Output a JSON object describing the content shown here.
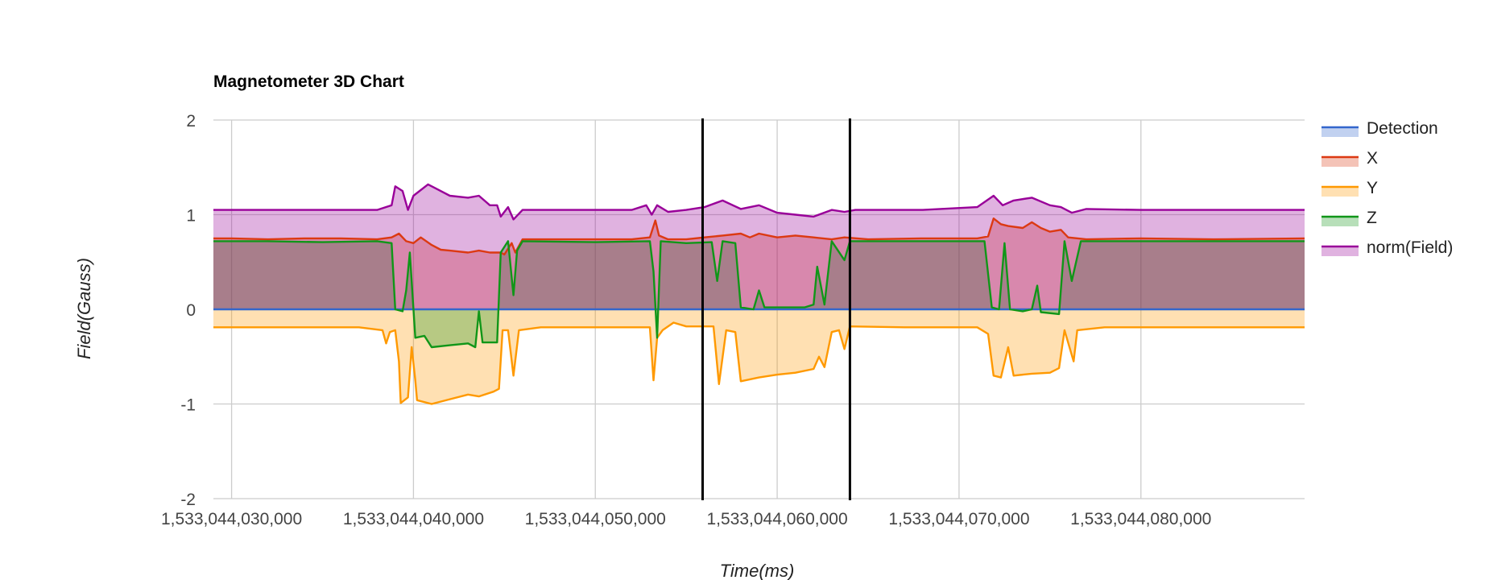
{
  "chart_data": {
    "type": "area",
    "title": "Magnetometer 3D Chart",
    "xlabel": "Time(ms)",
    "ylabel": "Field(Gauss)",
    "xlim": [
      1533044029000,
      1533044089000
    ],
    "ylim": [
      -2,
      2
    ],
    "grid": true,
    "legend_position": "right",
    "x_ticks": [
      1533044030000,
      1533044040000,
      1533044050000,
      1533044060000,
      1533044070000,
      1533044080000
    ],
    "x_tick_labels": [
      "1,533,044,030,000",
      "1,533,044,040,000",
      "1,533,044,050,000",
      "1,533,044,060,000",
      "1,533,044,070,000",
      "1,533,044,080,000"
    ],
    "y_ticks": [
      2,
      1,
      0,
      -1,
      -2
    ],
    "y_tick_labels": [
      "2",
      "1",
      "0",
      "-1",
      "-2"
    ],
    "vertical_markers": [
      1533044055900,
      1533044064000
    ],
    "series": [
      {
        "name": "Detection",
        "color": "#3366cc",
        "fill_opacity": 0.3,
        "points": [
          [
            1533044029000,
            0
          ],
          [
            1533044089000,
            0
          ]
        ]
      },
      {
        "name": "X",
        "color": "#dc3912",
        "fill_opacity": 0.3,
        "points": [
          [
            1533044029000,
            0.75
          ],
          [
            1533044030000,
            0.75
          ],
          [
            1533044032000,
            0.74
          ],
          [
            1533044034000,
            0.75
          ],
          [
            1533044036000,
            0.75
          ],
          [
            1533044038000,
            0.74
          ],
          [
            1533044038800,
            0.76
          ],
          [
            1533044039200,
            0.8
          ],
          [
            1533044039600,
            0.72
          ],
          [
            1533044040000,
            0.7
          ],
          [
            1533044040400,
            0.76
          ],
          [
            1533044041000,
            0.68
          ],
          [
            1533044041500,
            0.63
          ],
          [
            1533044042000,
            0.62
          ],
          [
            1533044043000,
            0.6
          ],
          [
            1533044043600,
            0.62
          ],
          [
            1533044044200,
            0.6
          ],
          [
            1533044044800,
            0.6
          ],
          [
            1533044045000,
            0.58
          ],
          [
            1533044045400,
            0.7
          ],
          [
            1533044045600,
            0.6
          ],
          [
            1533044046000,
            0.74
          ],
          [
            1533044048000,
            0.74
          ],
          [
            1533044050000,
            0.74
          ],
          [
            1533044052000,
            0.74
          ],
          [
            1533044053000,
            0.76
          ],
          [
            1533044053300,
            0.94
          ],
          [
            1533044053500,
            0.78
          ],
          [
            1533044054000,
            0.74
          ],
          [
            1533044055000,
            0.74
          ],
          [
            1533044056000,
            0.76
          ],
          [
            1533044057000,
            0.78
          ],
          [
            1533044058000,
            0.8
          ],
          [
            1533044058500,
            0.76
          ],
          [
            1533044059000,
            0.8
          ],
          [
            1533044060000,
            0.76
          ],
          [
            1533044061000,
            0.78
          ],
          [
            1533044062000,
            0.76
          ],
          [
            1533044063000,
            0.74
          ],
          [
            1533044063700,
            0.76
          ],
          [
            1533044065000,
            0.74
          ],
          [
            1533044068000,
            0.75
          ],
          [
            1533044071000,
            0.75
          ],
          [
            1533044071600,
            0.77
          ],
          [
            1533044071900,
            0.96
          ],
          [
            1533044072300,
            0.9
          ],
          [
            1533044072700,
            0.88
          ],
          [
            1533044073500,
            0.86
          ],
          [
            1533044074000,
            0.92
          ],
          [
            1533044074500,
            0.86
          ],
          [
            1533044075000,
            0.82
          ],
          [
            1533044075600,
            0.84
          ],
          [
            1533044076000,
            0.76
          ],
          [
            1533044077000,
            0.74
          ],
          [
            1533044080000,
            0.75
          ],
          [
            1533044084000,
            0.74
          ],
          [
            1533044089000,
            0.75
          ]
        ]
      },
      {
        "name": "Y",
        "color": "#ff9900",
        "fill_opacity": 0.3,
        "points": [
          [
            1533044029000,
            -0.19
          ],
          [
            1533044032000,
            -0.19
          ],
          [
            1533044035000,
            -0.19
          ],
          [
            1533044037000,
            -0.19
          ],
          [
            1533044038300,
            -0.22
          ],
          [
            1533044038500,
            -0.36
          ],
          [
            1533044038700,
            -0.24
          ],
          [
            1533044039000,
            -0.22
          ],
          [
            1533044039200,
            -0.55
          ],
          [
            1533044039300,
            -0.99
          ],
          [
            1533044039700,
            -0.93
          ],
          [
            1533044039900,
            -0.4
          ],
          [
            1533044040100,
            -0.75
          ],
          [
            1533044040200,
            -0.96
          ],
          [
            1533044041000,
            -1.0
          ],
          [
            1533044042000,
            -0.95
          ],
          [
            1533044043000,
            -0.9
          ],
          [
            1533044043600,
            -0.92
          ],
          [
            1533044044400,
            -0.87
          ],
          [
            1533044044700,
            -0.84
          ],
          [
            1533044044900,
            -0.22
          ],
          [
            1533044045200,
            -0.22
          ],
          [
            1533044045500,
            -0.7
          ],
          [
            1533044045800,
            -0.22
          ],
          [
            1533044047000,
            -0.19
          ],
          [
            1533044050000,
            -0.19
          ],
          [
            1533044053000,
            -0.19
          ],
          [
            1533044053200,
            -0.75
          ],
          [
            1533044053400,
            -0.3
          ],
          [
            1533044053700,
            -0.22
          ],
          [
            1533044054300,
            -0.14
          ],
          [
            1533044055000,
            -0.18
          ],
          [
            1533044056500,
            -0.18
          ],
          [
            1533044056800,
            -0.79
          ],
          [
            1533044057200,
            -0.22
          ],
          [
            1533044057700,
            -0.24
          ],
          [
            1533044058000,
            -0.76
          ],
          [
            1533044059000,
            -0.72
          ],
          [
            1533044060000,
            -0.69
          ],
          [
            1533044061000,
            -0.67
          ],
          [
            1533044062000,
            -0.63
          ],
          [
            1533044062300,
            -0.5
          ],
          [
            1533044062600,
            -0.61
          ],
          [
            1533044063000,
            -0.24
          ],
          [
            1533044063400,
            -0.22
          ],
          [
            1533044063700,
            -0.42
          ],
          [
            1533044064000,
            -0.18
          ],
          [
            1533044067000,
            -0.19
          ],
          [
            1533044071000,
            -0.19
          ],
          [
            1533044071600,
            -0.26
          ],
          [
            1533044071900,
            -0.7
          ],
          [
            1533044072300,
            -0.72
          ],
          [
            1533044072700,
            -0.4
          ],
          [
            1533044073000,
            -0.7
          ],
          [
            1533044074000,
            -0.68
          ],
          [
            1533044075000,
            -0.67
          ],
          [
            1533044075500,
            -0.62
          ],
          [
            1533044075800,
            -0.22
          ],
          [
            1533044076300,
            -0.55
          ],
          [
            1533044076500,
            -0.22
          ],
          [
            1533044078000,
            -0.19
          ],
          [
            1533044084000,
            -0.19
          ],
          [
            1533044089000,
            -0.19
          ]
        ]
      },
      {
        "name": "Z",
        "color": "#109618",
        "fill_opacity": 0.3,
        "points": [
          [
            1533044029000,
            0.72
          ],
          [
            1533044032000,
            0.72
          ],
          [
            1533044035000,
            0.71
          ],
          [
            1533044038000,
            0.72
          ],
          [
            1533044038800,
            0.7
          ],
          [
            1533044039000,
            0.0
          ],
          [
            1533044039400,
            -0.02
          ],
          [
            1533044039600,
            0.2
          ],
          [
            1533044039800,
            0.6
          ],
          [
            1533044040100,
            -0.3
          ],
          [
            1533044040600,
            -0.28
          ],
          [
            1533044041000,
            -0.4
          ],
          [
            1533044042000,
            -0.38
          ],
          [
            1533044043000,
            -0.36
          ],
          [
            1533044043400,
            -0.4
          ],
          [
            1533044043600,
            -0.02
          ],
          [
            1533044043800,
            -0.35
          ],
          [
            1533044044600,
            -0.35
          ],
          [
            1533044044800,
            0.6
          ],
          [
            1533044045200,
            0.72
          ],
          [
            1533044045500,
            0.15
          ],
          [
            1533044045700,
            0.62
          ],
          [
            1533044046000,
            0.72
          ],
          [
            1533044050000,
            0.71
          ],
          [
            1533044053000,
            0.72
          ],
          [
            1533044053200,
            0.4
          ],
          [
            1533044053400,
            -0.3
          ],
          [
            1533044053600,
            0.72
          ],
          [
            1533044055000,
            0.7
          ],
          [
            1533044056400,
            0.71
          ],
          [
            1533044056700,
            0.3
          ],
          [
            1533044057000,
            0.72
          ],
          [
            1533044057700,
            0.7
          ],
          [
            1533044058000,
            0.02
          ],
          [
            1533044058700,
            0.0
          ],
          [
            1533044059000,
            0.2
          ],
          [
            1533044059300,
            0.02
          ],
          [
            1533044061500,
            0.02
          ],
          [
            1533044062000,
            0.05
          ],
          [
            1533044062200,
            0.45
          ],
          [
            1533044062600,
            0.05
          ],
          [
            1533044063000,
            0.72
          ],
          [
            1533044063700,
            0.52
          ],
          [
            1533044064000,
            0.72
          ],
          [
            1533044068000,
            0.72
          ],
          [
            1533044071400,
            0.72
          ],
          [
            1533044071800,
            0.02
          ],
          [
            1533044072200,
            0.0
          ],
          [
            1533044072500,
            0.7
          ],
          [
            1533044072800,
            0.0
          ],
          [
            1533044073500,
            -0.02
          ],
          [
            1533044074000,
            0.0
          ],
          [
            1533044074300,
            0.25
          ],
          [
            1533044074500,
            -0.03
          ],
          [
            1533044075500,
            -0.05
          ],
          [
            1533044075800,
            0.72
          ],
          [
            1533044076200,
            0.3
          ],
          [
            1533044076700,
            0.72
          ],
          [
            1533044080000,
            0.72
          ],
          [
            1533044089000,
            0.72
          ]
        ]
      },
      {
        "name": "norm(Field)",
        "color": "#990099",
        "fill_opacity": 0.3,
        "points": [
          [
            1533044029000,
            1.05
          ],
          [
            1533044032000,
            1.05
          ],
          [
            1533044035000,
            1.05
          ],
          [
            1533044038000,
            1.05
          ],
          [
            1533044038800,
            1.1
          ],
          [
            1533044039000,
            1.3
          ],
          [
            1533044039400,
            1.25
          ],
          [
            1533044039700,
            1.05
          ],
          [
            1533044040000,
            1.2
          ],
          [
            1533044040800,
            1.32
          ],
          [
            1533044041200,
            1.28
          ],
          [
            1533044042000,
            1.2
          ],
          [
            1533044043000,
            1.18
          ],
          [
            1533044043600,
            1.2
          ],
          [
            1533044044200,
            1.1
          ],
          [
            1533044044600,
            1.1
          ],
          [
            1533044044800,
            0.98
          ],
          [
            1533044045200,
            1.08
          ],
          [
            1533044045500,
            0.95
          ],
          [
            1533044046000,
            1.05
          ],
          [
            1533044050000,
            1.05
          ],
          [
            1533044052000,
            1.05
          ],
          [
            1533044052800,
            1.1
          ],
          [
            1533044053100,
            1.0
          ],
          [
            1533044053400,
            1.1
          ],
          [
            1533044054000,
            1.03
          ],
          [
            1533044055000,
            1.05
          ],
          [
            1533044056000,
            1.08
          ],
          [
            1533044057000,
            1.15
          ],
          [
            1533044058000,
            1.06
          ],
          [
            1533044059000,
            1.1
          ],
          [
            1533044060000,
            1.02
          ],
          [
            1533044061000,
            1.0
          ],
          [
            1533044062000,
            0.98
          ],
          [
            1533044063000,
            1.05
          ],
          [
            1533044063700,
            1.03
          ],
          [
            1533044064300,
            1.05
          ],
          [
            1533044068000,
            1.05
          ],
          [
            1533044071000,
            1.08
          ],
          [
            1533044071900,
            1.2
          ],
          [
            1533044072400,
            1.1
          ],
          [
            1533044073000,
            1.15
          ],
          [
            1533044074000,
            1.18
          ],
          [
            1533044075000,
            1.1
          ],
          [
            1533044075600,
            1.08
          ],
          [
            1533044076200,
            1.02
          ],
          [
            1533044077000,
            1.06
          ],
          [
            1533044080000,
            1.05
          ],
          [
            1533044085000,
            1.05
          ],
          [
            1533044089000,
            1.05
          ]
        ]
      }
    ]
  }
}
